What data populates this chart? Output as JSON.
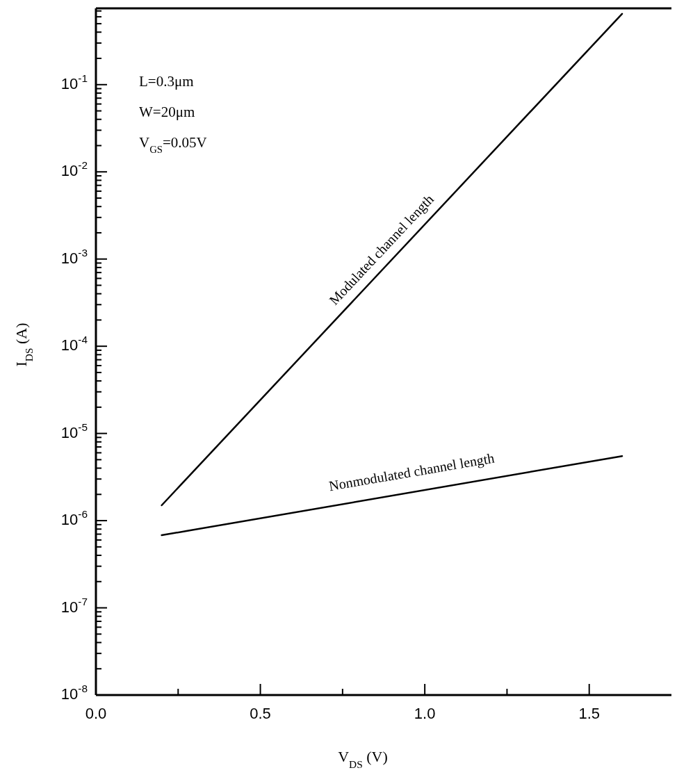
{
  "chart_data": {
    "type": "line",
    "xlabel": "V$_{DS}$ (V)",
    "ylabel": "I$_{DS}$ (A)",
    "x": [
      0.2,
      1.6
    ],
    "series": [
      {
        "name": "Modulated channel length",
        "color": "#000000",
        "values": [
          1.5e-06,
          0.65
        ]
      },
      {
        "name": "Nonmodulated channel length",
        "color": "#000000",
        "values": [
          6.8e-07,
          5.5e-06
        ]
      }
    ],
    "legend": false,
    "log": "y",
    "line_style": "solid",
    "marker": "none",
    "grid": false,
    "xlim": [
      0,
      1.75
    ],
    "ylim": [
      1e-08,
      0.75
    ],
    "xticks": [
      {
        "value": 0,
        "label": "0.0"
      },
      {
        "value": 0.25,
        "label": null
      },
      {
        "value": 0.5,
        "label": "0.5"
      },
      {
        "value": 0.75,
        "label": null
      },
      {
        "value": 1,
        "label": "1.0"
      },
      {
        "value": 1.25,
        "label": null
      },
      {
        "value": 1.5,
        "label": "1.5"
      }
    ],
    "yticks": [
      {
        "value": 1e-08,
        "label": "10$^{-8}$"
      },
      {
        "value": 2e-08,
        "label": null
      },
      {
        "value": 3e-08,
        "label": null
      },
      {
        "value": 4e-08,
        "label": null
      },
      {
        "value": 5e-08,
        "label": null
      },
      {
        "value": 6e-08,
        "label": null
      },
      {
        "value": 7e-08,
        "label": null
      },
      {
        "value": 8e-08,
        "label": null
      },
      {
        "value": 9e-08,
        "label": null
      },
      {
        "value": 1e-07,
        "label": "10$^{-7}$"
      },
      {
        "value": 2e-07,
        "label": null
      },
      {
        "value": 3e-07,
        "label": null
      },
      {
        "value": 4e-07,
        "label": null
      },
      {
        "value": 5e-07,
        "label": null
      },
      {
        "value": 6e-07,
        "label": null
      },
      {
        "value": 7e-07,
        "label": null
      },
      {
        "value": 8e-07,
        "label": null
      },
      {
        "value": 9e-07,
        "label": null
      },
      {
        "value": 1e-06,
        "label": "10$^{-6}$"
      },
      {
        "value": 2e-06,
        "label": null
      },
      {
        "value": 3e-06,
        "label": null
      },
      {
        "value": 4e-06,
        "label": null
      },
      {
        "value": 5e-06,
        "label": null
      },
      {
        "value": 6e-06,
        "label": null
      },
      {
        "value": 7e-06,
        "label": null
      },
      {
        "value": 8e-06,
        "label": null
      },
      {
        "value": 9e-06,
        "label": null
      },
      {
        "value": 1e-05,
        "label": "10$^{-5}$"
      },
      {
        "value": 2e-05,
        "label": null
      },
      {
        "value": 3e-05,
        "label": null
      },
      {
        "value": 4e-05,
        "label": null
      },
      {
        "value": 5e-05,
        "label": null
      },
      {
        "value": 6e-05,
        "label": null
      },
      {
        "value": 7e-05,
        "label": null
      },
      {
        "value": 8e-05,
        "label": null
      },
      {
        "value": 9e-05,
        "label": null
      },
      {
        "value": 0.0001,
        "label": "10$^{-4}$"
      },
      {
        "value": 0.0002,
        "label": null
      },
      {
        "value": 0.0003,
        "label": null
      },
      {
        "value": 0.0004,
        "label": null
      },
      {
        "value": 0.0005,
        "label": null
      },
      {
        "value": 0.0006,
        "label": null
      },
      {
        "value": 0.0007,
        "label": null
      },
      {
        "value": 0.0008,
        "label": null
      },
      {
        "value": 0.0009,
        "label": null
      },
      {
        "value": 0.001,
        "label": "10$^{-3}$"
      },
      {
        "value": 0.002,
        "label": null
      },
      {
        "value": 0.003,
        "label": null
      },
      {
        "value": 0.004,
        "label": null
      },
      {
        "value": 0.005,
        "label": null
      },
      {
        "value": 0.006,
        "label": null
      },
      {
        "value": 0.007,
        "label": null
      },
      {
        "value": 0.008,
        "label": null
      },
      {
        "value": 0.009,
        "label": null
      },
      {
        "value": 0.01,
        "label": "10$^{-2}$"
      },
      {
        "value": 0.02,
        "label": null
      },
      {
        "value": 0.03,
        "label": null
      },
      {
        "value": 0.04,
        "label": null
      },
      {
        "value": 0.05,
        "label": null
      },
      {
        "value": 0.06,
        "label": null
      },
      {
        "value": 0.07,
        "label": null
      },
      {
        "value": 0.08,
        "label": null
      },
      {
        "value": 0.09,
        "label": null
      },
      {
        "value": 0.1,
        "label": "10$^{-1}$"
      },
      {
        "value": 0.2,
        "label": null
      },
      {
        "value": 0.3,
        "label": null
      },
      {
        "value": 0.4,
        "label": null
      },
      {
        "value": 0.5,
        "label": null
      },
      {
        "value": 0.6,
        "label": null
      },
      {
        "value": 0.7,
        "label": null
      }
    ],
    "tick_labels": "xy",
    "annotations": [
      "L=0.3μm",
      "W=20μm",
      "V$_{GS}$=0.05V"
    ]
  }
}
